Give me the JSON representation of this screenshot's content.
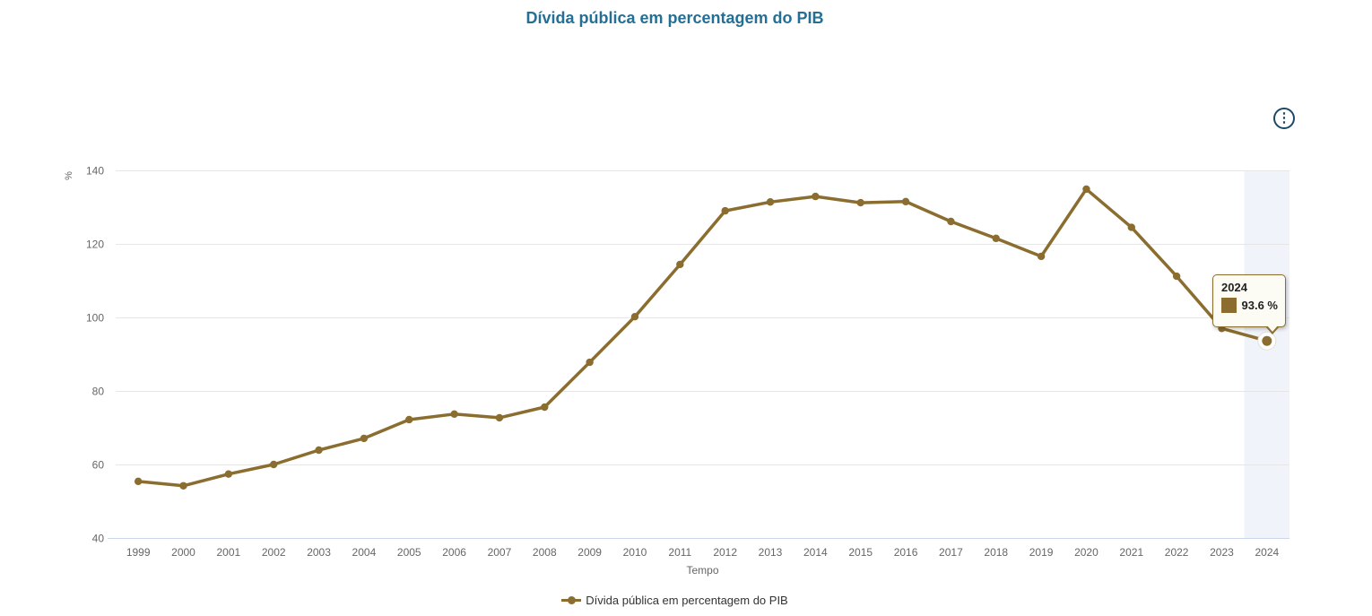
{
  "title": "Dívida pública em percentagem do PIB",
  "header": {
    "menu_icon": "kebab-menu-icon"
  },
  "tooltip": {
    "year": "2024",
    "value": "93.6 %"
  },
  "legend": {
    "label": "Dívida pública em percentagem do PIB"
  },
  "colors": {
    "title": "#266f94",
    "series": "#8a6d2f",
    "plot_band": "#f0f3f9",
    "grid": "#e6e6e6",
    "axis_line": "#ccd6eb",
    "tick_label": "#666666",
    "tooltip_border": "#8a6d2f",
    "tooltip_bg": "#fcfbf4",
    "menu_icon": "#1a4a66",
    "halo_fill": "#ffffff",
    "halo_edge": "#e3e1d6"
  },
  "chart_data": {
    "type": "line",
    "title": "Dívida pública em percentagem do PIB",
    "xlabel": "Tempo",
    "ylabel": "%",
    "ylim": [
      40,
      140
    ],
    "yticks": [
      40,
      60,
      80,
      100,
      120,
      140
    ],
    "grid": true,
    "legend_position": "bottom",
    "highlighted_category": "2024",
    "categories": [
      "1999",
      "2000",
      "2001",
      "2002",
      "2003",
      "2004",
      "2005",
      "2006",
      "2007",
      "2008",
      "2009",
      "2010",
      "2011",
      "2012",
      "2013",
      "2014",
      "2015",
      "2016",
      "2017",
      "2018",
      "2019",
      "2020",
      "2021",
      "2022",
      "2023",
      "2024"
    ],
    "series": [
      {
        "name": "Dívida pública em percentagem do PIB",
        "color": "#8a6d2f",
        "values": [
          55.4,
          54.2,
          57.4,
          60.0,
          63.9,
          67.1,
          72.2,
          73.7,
          72.7,
          75.6,
          87.8,
          100.2,
          114.4,
          129.0,
          131.4,
          132.9,
          131.2,
          131.5,
          126.1,
          121.5,
          116.6,
          134.9,
          124.5,
          111.2,
          97.0,
          93.6
        ]
      }
    ],
    "tooltip_point": {
      "category": "2024",
      "value": 93.6,
      "label": "93.6 %"
    }
  }
}
